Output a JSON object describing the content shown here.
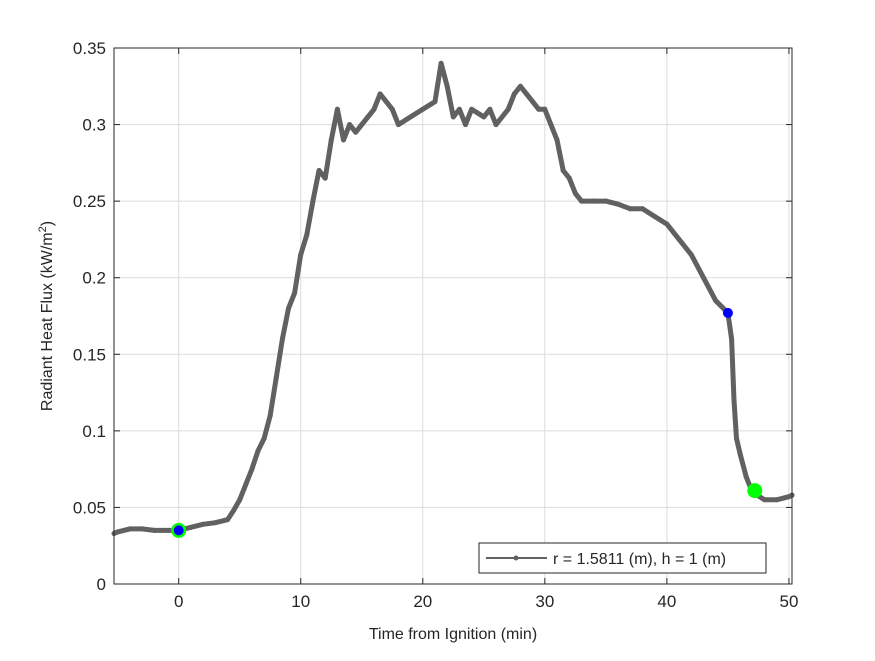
{
  "chart_data": {
    "type": "line",
    "title": "",
    "xlabel": "Time from Ignition (min)",
    "ylabel": "Radiant Heat Flux (kW/m",
    "ylabel_superscript": "2",
    "ylabel_suffix": ")",
    "xlim": [
      -5.3,
      50.25
    ],
    "ylim": [
      0,
      0.35
    ],
    "xticks": [
      0,
      10,
      20,
      30,
      40,
      50
    ],
    "yticks": [
      0,
      0.05,
      0.1,
      0.15,
      0.2,
      0.25,
      0.3,
      0.35
    ],
    "xtick_labels": [
      "0",
      "10",
      "20",
      "30",
      "40",
      "50"
    ],
    "ytick_labels": [
      "0",
      "0.05",
      "0.1",
      "0.15",
      "0.2",
      "0.25",
      "0.3",
      "0.35"
    ],
    "grid": true,
    "legend_placement": "bottom-right",
    "series": [
      {
        "name": "r = 1.5811 (m), h = 1 (m)",
        "color": "#616161",
        "marker": "dot",
        "x": [
          -5.3,
          -5,
          -4,
          -3,
          -2,
          -1,
          0,
          1,
          2,
          3,
          4,
          4.5,
          5,
          5.5,
          6,
          6.5,
          7,
          7.5,
          8,
          8.5,
          9,
          9.5,
          10,
          10.5,
          11,
          11.5,
          12,
          12.5,
          13,
          13.5,
          14,
          14.5,
          15,
          15.5,
          16,
          16.5,
          17,
          17.5,
          18,
          19,
          20,
          21,
          21.5,
          22,
          22.5,
          23,
          23.5,
          24,
          25,
          25.5,
          26,
          27,
          27.5,
          28,
          28.5,
          29,
          29.5,
          30,
          30.5,
          31,
          31.5,
          32,
          32.5,
          33,
          34,
          35,
          36,
          37,
          38,
          39,
          40,
          41,
          42,
          43,
          44,
          45,
          45.3,
          45.5,
          45.7,
          46,
          46.5,
          47,
          48,
          49,
          50,
          50.25
        ],
        "y": [
          0.033,
          0.034,
          0.036,
          0.036,
          0.035,
          0.035,
          0.035,
          0.037,
          0.039,
          0.04,
          0.042,
          0.048,
          0.055,
          0.065,
          0.075,
          0.087,
          0.095,
          0.11,
          0.135,
          0.16,
          0.18,
          0.19,
          0.215,
          0.228,
          0.25,
          0.27,
          0.265,
          0.29,
          0.31,
          0.29,
          0.3,
          0.295,
          0.3,
          0.305,
          0.31,
          0.32,
          0.315,
          0.31,
          0.3,
          0.305,
          0.31,
          0.315,
          0.34,
          0.325,
          0.305,
          0.31,
          0.3,
          0.31,
          0.305,
          0.31,
          0.3,
          0.31,
          0.32,
          0.325,
          0.32,
          0.315,
          0.31,
          0.31,
          0.3,
          0.29,
          0.27,
          0.265,
          0.255,
          0.25,
          0.25,
          0.25,
          0.248,
          0.245,
          0.245,
          0.24,
          0.235,
          0.225,
          0.215,
          0.2,
          0.185,
          0.177,
          0.16,
          0.12,
          0.095,
          0.085,
          0.07,
          0.06,
          0.055,
          0.055,
          0.057,
          0.058
        ]
      }
    ],
    "highlight_points": [
      {
        "x": 0,
        "y": 0.035,
        "color": "#00ff00",
        "size": "large"
      },
      {
        "x": 0,
        "y": 0.035,
        "color": "#0000ff",
        "size": "small"
      },
      {
        "x": 45,
        "y": 0.177,
        "color": "#0000ff",
        "size": "small"
      },
      {
        "x": 47.2,
        "y": 0.061,
        "color": "#00ff00",
        "size": "large"
      }
    ]
  }
}
